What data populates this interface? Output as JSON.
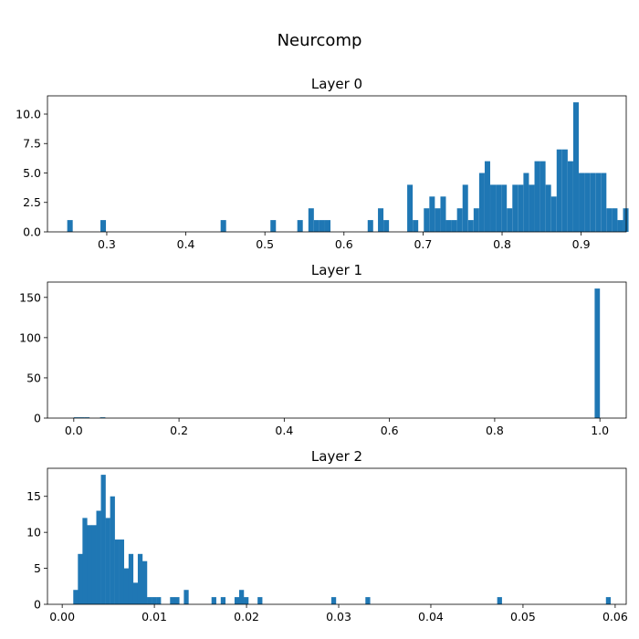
{
  "figure": {
    "title": "Neurcomp",
    "bar_color": "#1f77b4"
  },
  "chart_data": [
    {
      "type": "bar",
      "title": "Layer 0",
      "xlabel": "",
      "ylabel": "",
      "xlim": [
        0.225,
        0.957
      ],
      "ylim": [
        0,
        11.55
      ],
      "xticks": [
        0.3,
        0.4,
        0.5,
        0.6,
        0.7,
        0.8,
        0.9
      ],
      "xtick_labels": [
        "0.3",
        "0.4",
        "0.5",
        "0.6",
        "0.7",
        "0.8",
        "0.9"
      ],
      "yticks": [
        0,
        2.5,
        5,
        7.5,
        10
      ],
      "ytick_labels": [
        "0.0",
        "2.5",
        "5.0",
        "7.5",
        "10.0"
      ],
      "bin_width": 0.00695,
      "bins": [
        {
          "x": 0.25,
          "y": 1
        },
        {
          "x": 0.292,
          "y": 1
        },
        {
          "x": 0.444,
          "y": 1
        },
        {
          "x": 0.507,
          "y": 1
        },
        {
          "x": 0.541,
          "y": 1
        },
        {
          "x": 0.555,
          "y": 2
        },
        {
          "x": 0.562,
          "y": 1
        },
        {
          "x": 0.569,
          "y": 1
        },
        {
          "x": 0.576,
          "y": 1
        },
        {
          "x": 0.63,
          "y": 1
        },
        {
          "x": 0.643,
          "y": 2
        },
        {
          "x": 0.65,
          "y": 1
        },
        {
          "x": 0.68,
          "y": 4
        },
        {
          "x": 0.687,
          "y": 1
        },
        {
          "x": 0.701,
          "y": 2
        },
        {
          "x": 0.708,
          "y": 3
        },
        {
          "x": 0.715,
          "y": 2
        },
        {
          "x": 0.722,
          "y": 3
        },
        {
          "x": 0.729,
          "y": 1
        },
        {
          "x": 0.736,
          "y": 1
        },
        {
          "x": 0.743,
          "y": 2
        },
        {
          "x": 0.75,
          "y": 4
        },
        {
          "x": 0.757,
          "y": 1
        },
        {
          "x": 0.764,
          "y": 2
        },
        {
          "x": 0.771,
          "y": 5
        },
        {
          "x": 0.778,
          "y": 6
        },
        {
          "x": 0.785,
          "y": 4
        },
        {
          "x": 0.792,
          "y": 4
        },
        {
          "x": 0.799,
          "y": 4
        },
        {
          "x": 0.806,
          "y": 2
        },
        {
          "x": 0.813,
          "y": 4
        },
        {
          "x": 0.82,
          "y": 4
        },
        {
          "x": 0.827,
          "y": 5
        },
        {
          "x": 0.834,
          "y": 4
        },
        {
          "x": 0.841,
          "y": 6
        },
        {
          "x": 0.848,
          "y": 6
        },
        {
          "x": 0.855,
          "y": 4
        },
        {
          "x": 0.862,
          "y": 3
        },
        {
          "x": 0.869,
          "y": 7
        },
        {
          "x": 0.876,
          "y": 7
        },
        {
          "x": 0.883,
          "y": 6
        },
        {
          "x": 0.89,
          "y": 11
        },
        {
          "x": 0.897,
          "y": 5
        },
        {
          "x": 0.904,
          "y": 5
        },
        {
          "x": 0.911,
          "y": 5
        },
        {
          "x": 0.918,
          "y": 5
        },
        {
          "x": 0.925,
          "y": 5
        },
        {
          "x": 0.932,
          "y": 2
        },
        {
          "x": 0.939,
          "y": 2
        },
        {
          "x": 0.946,
          "y": 1
        },
        {
          "x": 0.953,
          "y": 2
        }
      ]
    },
    {
      "type": "bar",
      "title": "Layer 1",
      "xlabel": "",
      "ylabel": "",
      "xlim": [
        -0.05,
        1.05
      ],
      "ylim": [
        0,
        169.05
      ],
      "xticks": [
        0.0,
        0.2,
        0.4,
        0.6,
        0.8,
        1.0
      ],
      "xtick_labels": [
        "0.0",
        "0.2",
        "0.4",
        "0.6",
        "0.8",
        "1.0"
      ],
      "yticks": [
        0,
        50,
        100,
        150
      ],
      "ytick_labels": [
        "0",
        "50",
        "100",
        "150"
      ],
      "bin_width": 0.01,
      "bins": [
        {
          "x": 0.0,
          "y": 1
        },
        {
          "x": 0.01,
          "y": 1
        },
        {
          "x": 0.02,
          "y": 1
        },
        {
          "x": 0.05,
          "y": 1
        },
        {
          "x": 0.99,
          "y": 161
        }
      ]
    },
    {
      "type": "bar",
      "title": "Layer 2",
      "xlabel": "",
      "ylabel": "",
      "xlim": [
        -0.0016,
        0.0612
      ],
      "ylim": [
        0,
        18.9
      ],
      "xticks": [
        0.0,
        0.01,
        0.02,
        0.03,
        0.04,
        0.05,
        0.06
      ],
      "xtick_labels": [
        "0.00",
        "0.01",
        "0.02",
        "0.03",
        "0.04",
        "0.05",
        "0.06"
      ],
      "yticks": [
        0,
        5,
        10,
        15
      ],
      "ytick_labels": [
        "0",
        "5",
        "10",
        "15"
      ],
      "bin_width": 0.00052,
      "bins": [
        {
          "x": 0.0012,
          "y": 2
        },
        {
          "x": 0.0017,
          "y": 7
        },
        {
          "x": 0.0022,
          "y": 12
        },
        {
          "x": 0.0027,
          "y": 11
        },
        {
          "x": 0.0032,
          "y": 11
        },
        {
          "x": 0.0037,
          "y": 13
        },
        {
          "x": 0.0042,
          "y": 18
        },
        {
          "x": 0.0047,
          "y": 12
        },
        {
          "x": 0.0052,
          "y": 15
        },
        {
          "x": 0.0057,
          "y": 9
        },
        {
          "x": 0.0062,
          "y": 9
        },
        {
          "x": 0.0067,
          "y": 5
        },
        {
          "x": 0.0072,
          "y": 7
        },
        {
          "x": 0.0077,
          "y": 3
        },
        {
          "x": 0.0082,
          "y": 7
        },
        {
          "x": 0.0087,
          "y": 6
        },
        {
          "x": 0.0092,
          "y": 1
        },
        {
          "x": 0.0097,
          "y": 1
        },
        {
          "x": 0.0102,
          "y": 1
        },
        {
          "x": 0.0117,
          "y": 1
        },
        {
          "x": 0.0122,
          "y": 1
        },
        {
          "x": 0.0132,
          "y": 2
        },
        {
          "x": 0.0162,
          "y": 1
        },
        {
          "x": 0.0172,
          "y": 1
        },
        {
          "x": 0.0187,
          "y": 1
        },
        {
          "x": 0.0192,
          "y": 2
        },
        {
          "x": 0.0197,
          "y": 1
        },
        {
          "x": 0.0212,
          "y": 1
        },
        {
          "x": 0.0292,
          "y": 1
        },
        {
          "x": 0.0329,
          "y": 1
        },
        {
          "x": 0.0472,
          "y": 1
        },
        {
          "x": 0.059,
          "y": 1
        }
      ]
    }
  ]
}
